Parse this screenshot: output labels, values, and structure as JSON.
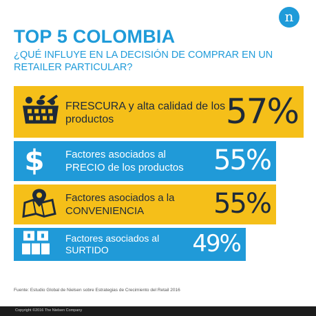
{
  "brand": {
    "logo_letter": "n",
    "accent": "#1f9bd9",
    "yellow": "#f5bf19",
    "blue": "#209ad8",
    "dark": "#1e2a39"
  },
  "header": {
    "title": "TOP 5 COLOMBIA",
    "subtitle": "¿QUÉ INFLUYE EN LA DECISIÓN DE COMPRAR EN UN RETAILER PARTICULAR?"
  },
  "chart_data": {
    "type": "bar",
    "orientation": "horizontal",
    "categories": [
      {
        "strong": "FRESCURA",
        "rest": " y alta calidad de los productos",
        "icon": "basket-icon",
        "color": "yellow"
      },
      {
        "strong": "",
        "rest": "Factores asociados al PRECIO de los productos",
        "icon": "dollar-icon",
        "color": "blue"
      },
      {
        "strong": "",
        "rest": "Factores asociados a la CONVENIENCIA",
        "icon": "map-pin-icon",
        "color": "yellow"
      },
      {
        "strong": "",
        "rest": "Factores asociados al SURTIDO",
        "icon": "boxes-icon",
        "color": "blue"
      }
    ],
    "values": [
      57,
      55,
      55,
      49
    ],
    "value_labels": [
      "57%",
      "55%",
      "55%",
      "49%"
    ],
    "unit": "%"
  },
  "footer": {
    "source": "Fuente: Estudio Global de Nielsen sobre Estrategias de Crecimiento del Retail 2016",
    "copyright": "Copyright ©2016 The Nielsen Company"
  }
}
